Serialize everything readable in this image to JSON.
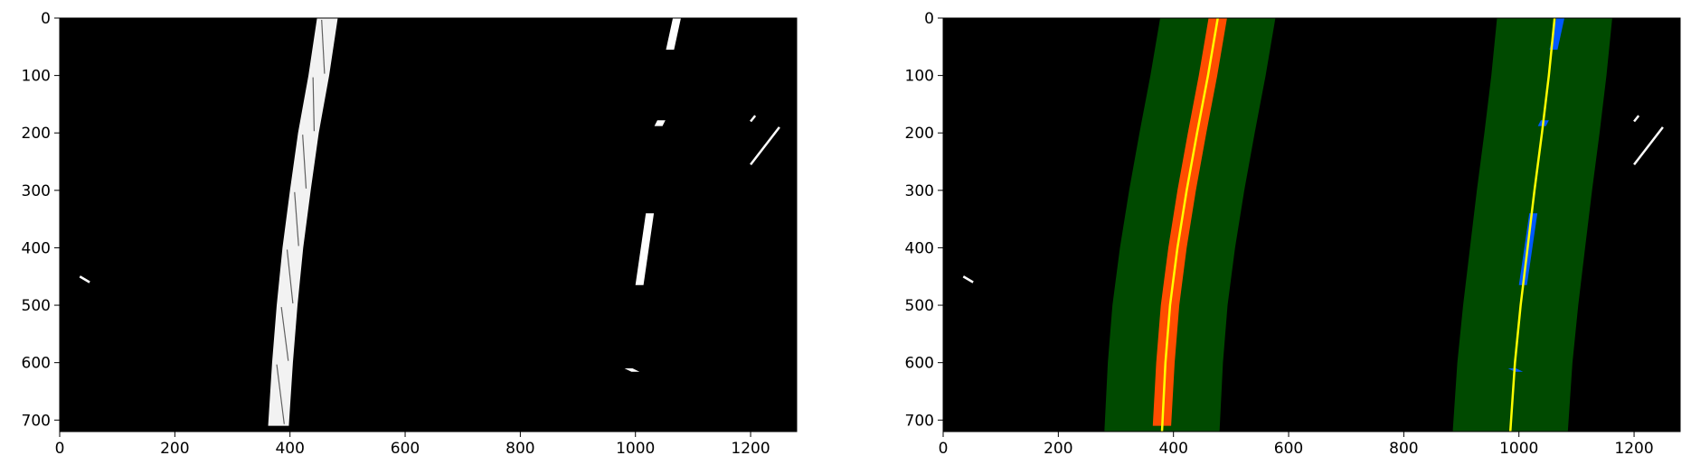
{
  "chart_data": [
    {
      "type": "image",
      "panel": "binary-warped-lane-pixels",
      "xlim": [
        0,
        1280
      ],
      "ylim": [
        720,
        0
      ],
      "xticks": [
        0,
        200,
        400,
        600,
        800,
        1000,
        1200
      ],
      "yticks": [
        0,
        100,
        200,
        300,
        400,
        500,
        600,
        700
      ],
      "xtick_labels": [
        "0",
        "200",
        "400",
        "600",
        "800",
        "1000",
        "1200"
      ],
      "ytick_labels": [
        "0",
        "100",
        "200",
        "300",
        "400",
        "500",
        "600",
        "700"
      ],
      "background_color": "#000000",
      "pixel_color": "#ffffff",
      "left_lane_pixels_x_at_y": {
        "y": [
          0,
          100,
          200,
          300,
          400,
          500,
          600,
          710
        ],
        "x": [
          465,
          450,
          432,
          418,
          405,
          395,
          387,
          380
        ]
      },
      "right_lane_segments": [
        {
          "y_start": 0,
          "y_end": 55,
          "x_start": 1072,
          "x_end": 1060
        },
        {
          "y_start": 178,
          "y_end": 188,
          "x_start": 1045,
          "x_end": 1040
        },
        {
          "y_start": 340,
          "y_end": 465,
          "x_start": 1025,
          "x_end": 1007
        },
        {
          "y_start": 610,
          "y_end": 616,
          "x_start": 988,
          "x_end": 1000
        }
      ],
      "noise_segments": [
        {
          "y_start": 450,
          "y_end": 460,
          "x_start": 35,
          "x_end": 52
        },
        {
          "y_start": 190,
          "y_end": 255,
          "x_start": 1250,
          "x_end": 1200
        },
        {
          "y_start": 170,
          "y_end": 180,
          "x_start": 1208,
          "x_end": 1200
        }
      ]
    },
    {
      "type": "image",
      "panel": "sliding-search-fit",
      "xlim": [
        0,
        1280
      ],
      "ylim": [
        720,
        0
      ],
      "xticks": [
        0,
        200,
        400,
        600,
        800,
        1000,
        1200
      ],
      "yticks": [
        0,
        100,
        200,
        300,
        400,
        500,
        600,
        700
      ],
      "xtick_labels": [
        "0",
        "200",
        "400",
        "600",
        "800",
        "1000",
        "1200"
      ],
      "ytick_labels": [
        "0",
        "100",
        "200",
        "300",
        "400",
        "500",
        "600",
        "700"
      ],
      "colors": {
        "background": "#000000",
        "search_window": "#004a00",
        "left_lane_pixels": "#ff4d00",
        "right_lane_pixels": "#0059ff",
        "fit_line": "#ffff00",
        "noise_pixels": "#ffffff"
      },
      "search_margin": 100,
      "left_fit_x_at_y": {
        "y": [
          0,
          100,
          200,
          300,
          400,
          500,
          600,
          720
        ],
        "x": [
          477,
          460,
          441,
          423,
          407,
          394,
          386,
          380
        ]
      },
      "right_fit_x_at_y": {
        "y": [
          0,
          100,
          200,
          300,
          400,
          500,
          600,
          720
        ],
        "x": [
          1062,
          1052,
          1040,
          1027,
          1015,
          1003,
          993,
          985
        ]
      }
    }
  ]
}
